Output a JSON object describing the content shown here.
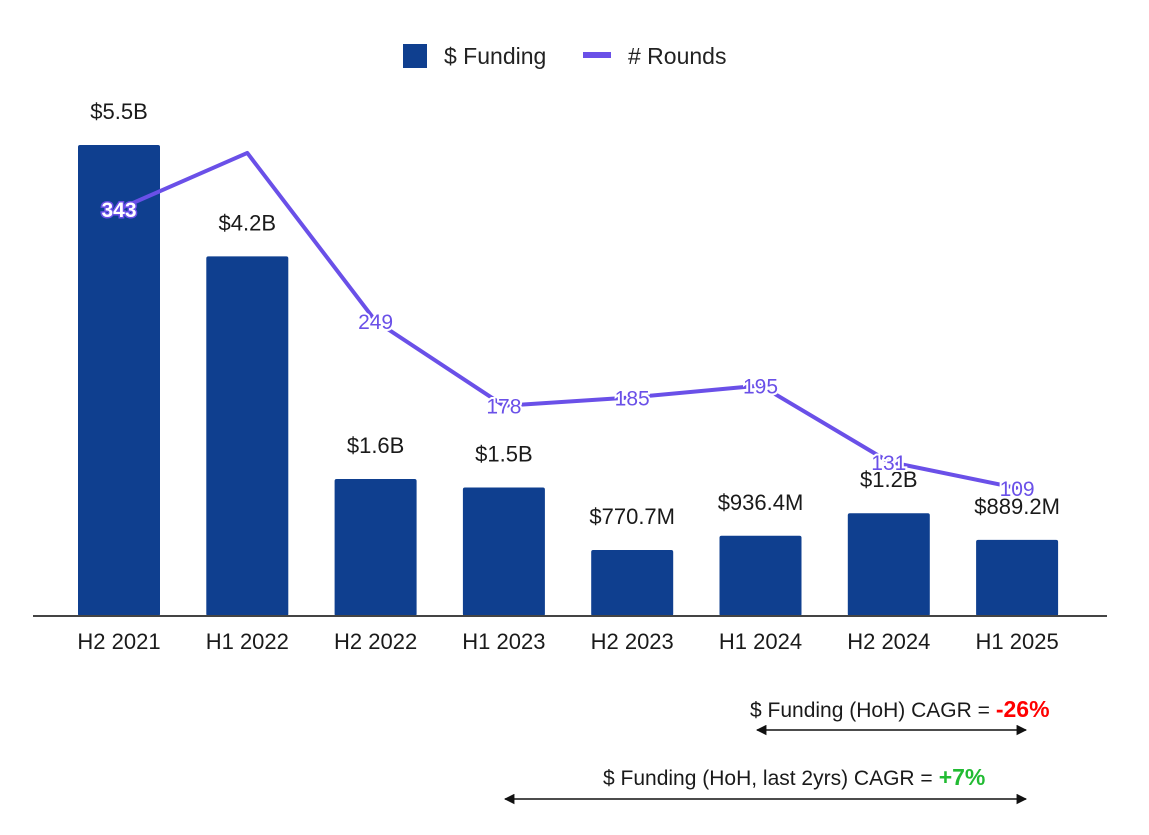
{
  "chart_data": {
    "type": "bar",
    "categories": [
      "H2 2021",
      "H1 2022",
      "H2 2022",
      "H1 2023",
      "H2 2023",
      "H1 2024",
      "H2 2024",
      "H1 2025"
    ],
    "series": [
      {
        "name": "$ Funding",
        "kind": "bar",
        "color": "#0f3f8f",
        "values_usd_billion": [
          5.5,
          4.2,
          1.6,
          1.5,
          0.7707,
          0.9364,
          1.2,
          0.8892
        ],
        "labels": [
          "$5.5B",
          "$4.2B",
          "$1.6B",
          "$1.5B",
          "$770.7M",
          "$936.4M",
          "$1.2B",
          "$889.2M"
        ]
      },
      {
        "name": "# Rounds",
        "kind": "line",
        "color": "#6a50e8",
        "values": [
          343,
          390,
          249,
          178,
          185,
          195,
          131,
          109
        ],
        "labels": [
          "343",
          "",
          "249",
          "178",
          "185",
          "195",
          "131",
          "109"
        ]
      }
    ],
    "funding_axis_range": [
      0,
      6.0
    ],
    "rounds_axis_range": [
      -80,
      460
    ],
    "legend_position": "top-center",
    "grid": false
  },
  "annotations": [
    {
      "text": "$ Funding (HoH) CAGR =",
      "value": "-26%",
      "value_color": "#ff0000"
    },
    {
      "text": "$ Funding (HoH, last 2yrs) CAGR =",
      "value": "+7%",
      "value_color": "#22bb33"
    }
  ]
}
